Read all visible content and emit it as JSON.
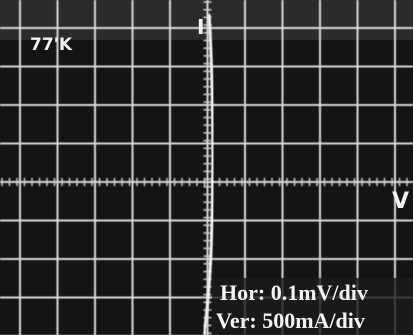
{
  "labels": {
    "temperature": "77'K",
    "current_axis": "I",
    "voltage_axis": "V",
    "horizontal_scale": "Hor: 0.1mV/div",
    "vertical_scale": "Ver: 500mA/div"
  }
}
